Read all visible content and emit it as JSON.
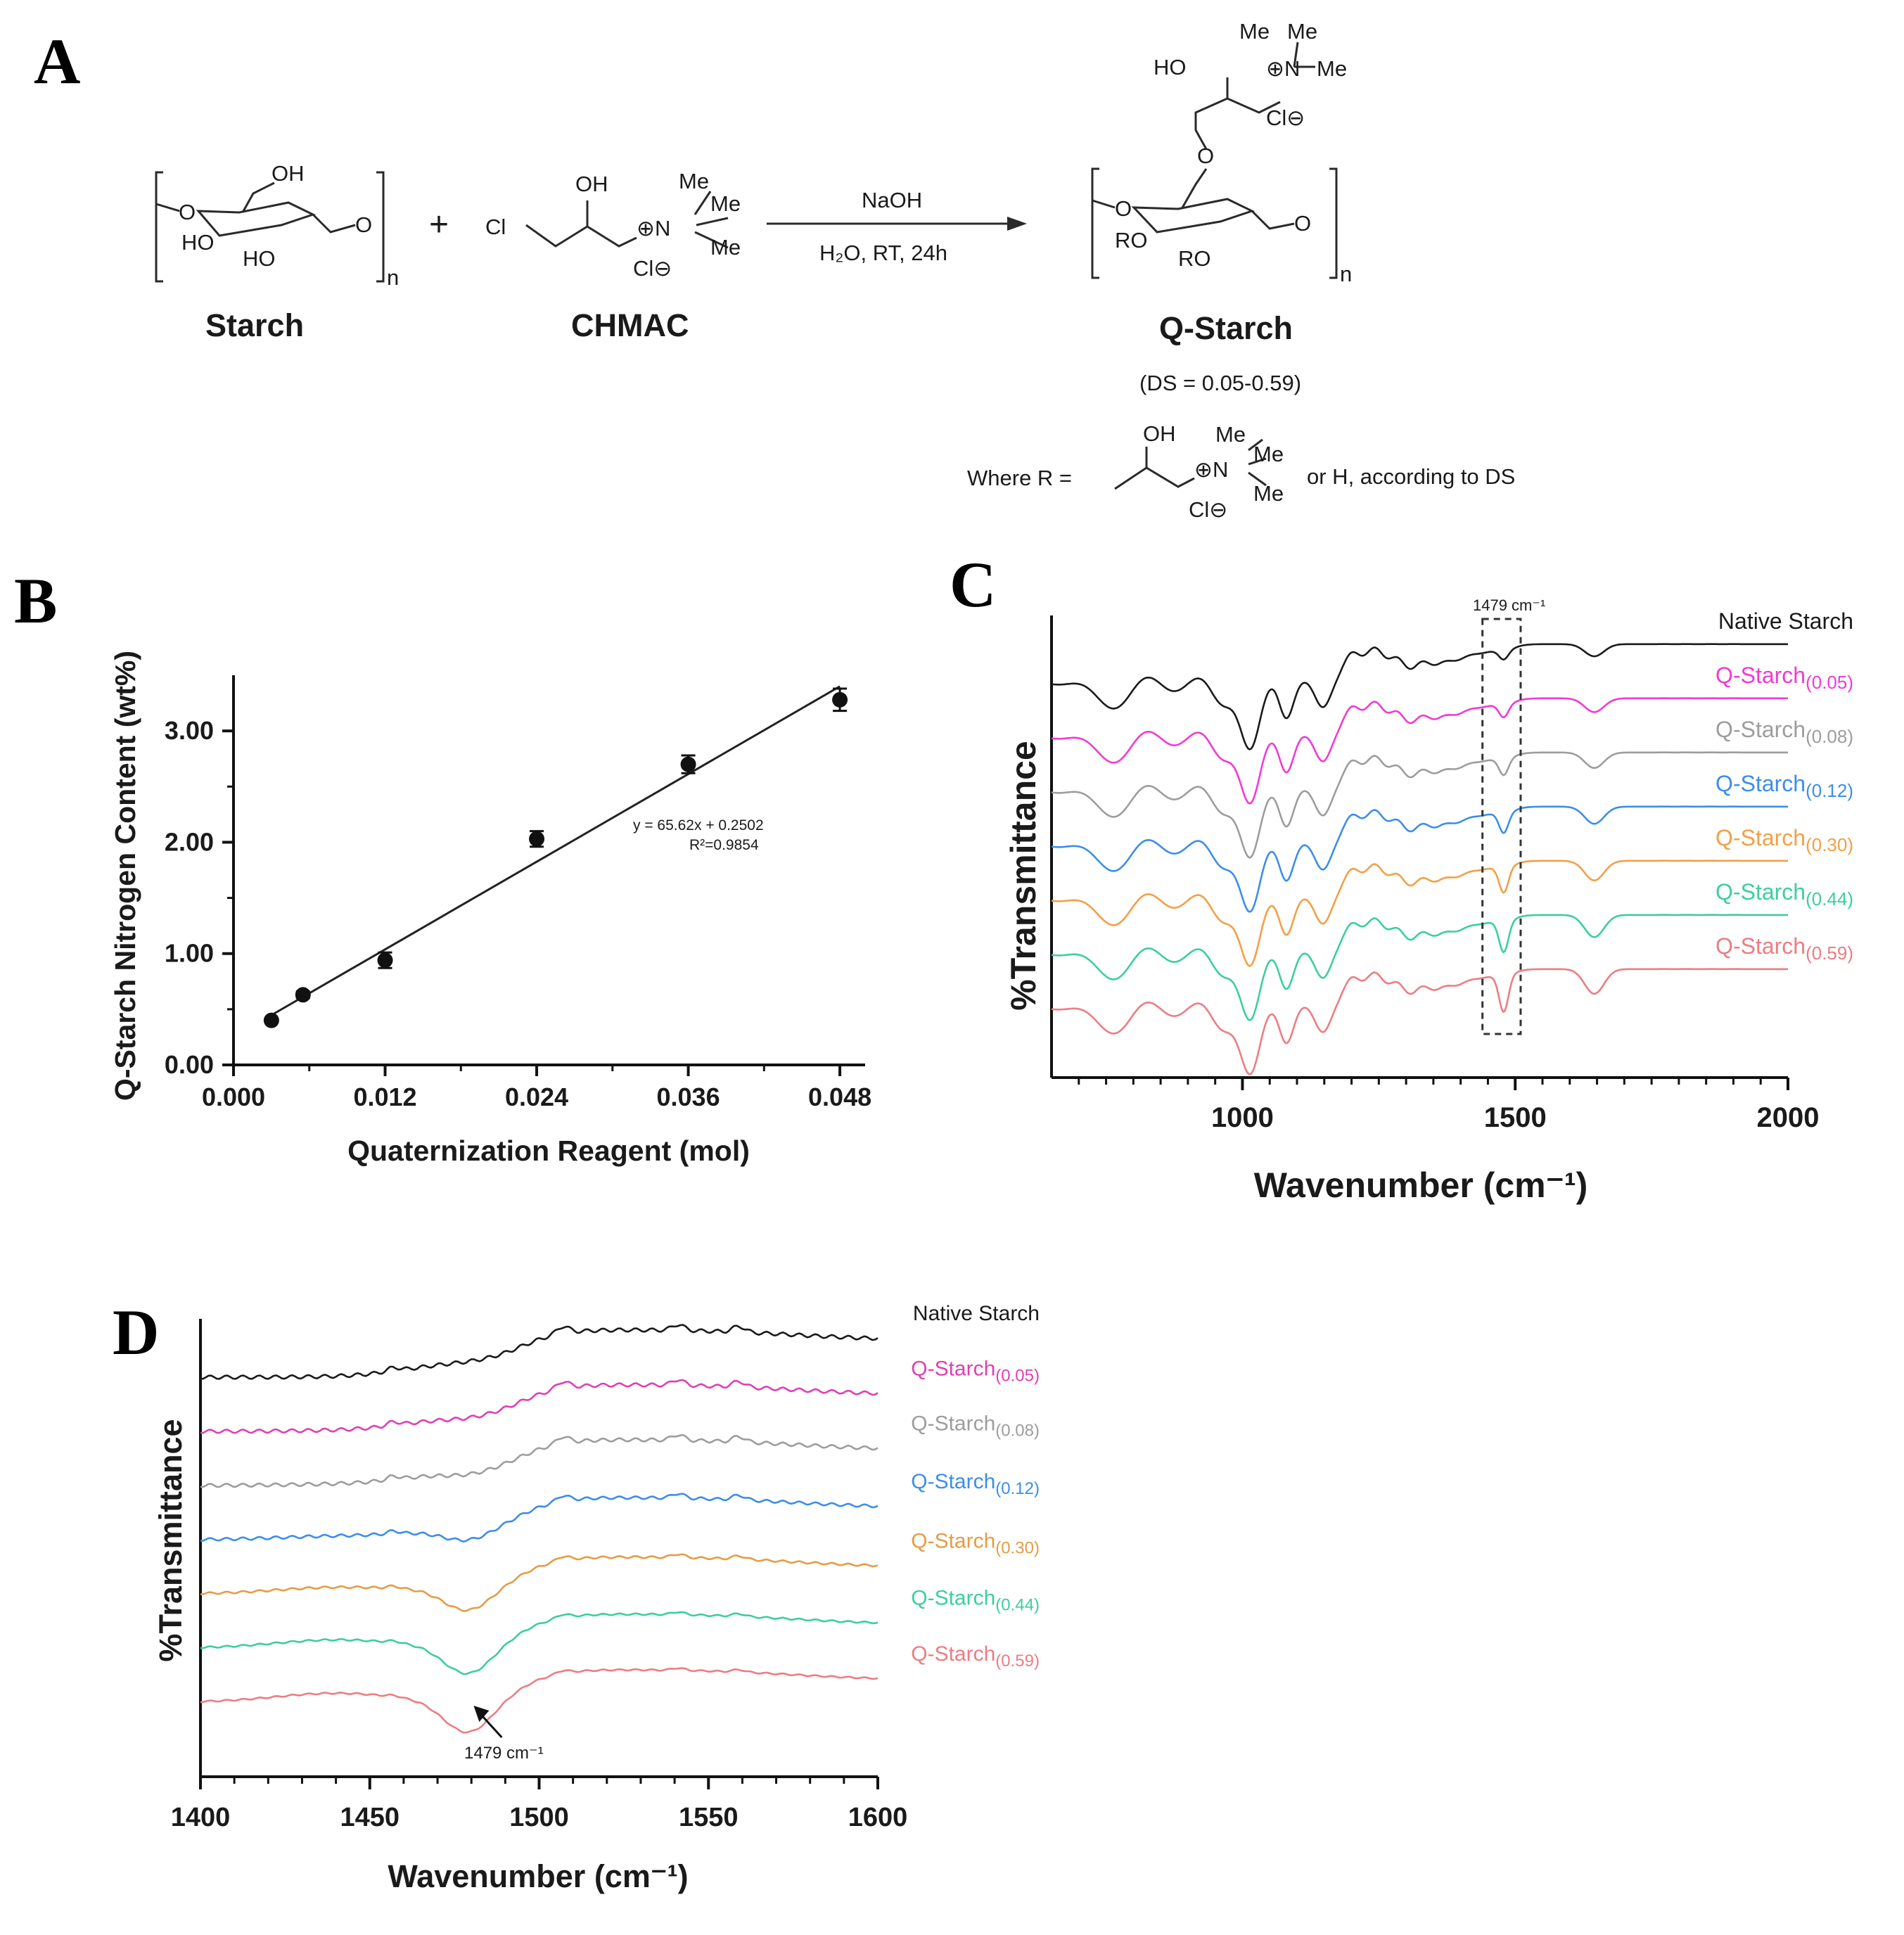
{
  "panels": {
    "a": "A",
    "b": "B",
    "c": "C",
    "d": "D"
  },
  "scheme": {
    "starch_label": "Starch",
    "chmac_label": "CHMAC",
    "product_label": "Q-Starch",
    "reagent": "NaOH",
    "conditions": "H₂O, RT, 24h",
    "plus": "+",
    "ds_range": "(DS = 0.05-0.59)",
    "where_prefix": "Where R =",
    "where_suffix": "or H, according to DS",
    "atoms": {
      "oh": "OH",
      "ho": "HO",
      "o": "O",
      "cl": "Cl",
      "cl_minus": "Cl⊖",
      "me": "Me",
      "n_plus": "⊕N",
      "ro": "RO",
      "n": "n"
    }
  },
  "chart_data": [
    {
      "id": "B",
      "type": "scatter",
      "title": "",
      "xlabel": "Quaternization Reagent (mol)",
      "ylabel": "Q-Starch Nitrogen Content (wt%)",
      "xlim": [
        0.0,
        0.05
      ],
      "ylim": [
        0.0,
        3.5
      ],
      "xticks": [
        "0.000",
        "0.012",
        "0.024",
        "0.036",
        "0.048"
      ],
      "yticks": [
        "0.00",
        "1.00",
        "2.00",
        "3.00"
      ],
      "points": [
        {
          "x": 0.003,
          "y": 0.4,
          "err": 0.02
        },
        {
          "x": 0.0055,
          "y": 0.63,
          "err": 0.03
        },
        {
          "x": 0.012,
          "y": 0.94,
          "err": 0.07
        },
        {
          "x": 0.024,
          "y": 2.03,
          "err": 0.07
        },
        {
          "x": 0.036,
          "y": 2.7,
          "err": 0.08
        },
        {
          "x": 0.048,
          "y": 3.28,
          "err": 0.1
        }
      ],
      "fit": {
        "slope": 65.62,
        "intercept": 0.2502,
        "x_range": [
          0.0025,
          0.048
        ]
      },
      "fit_equation": "y =  65.62x + 0.2502",
      "r2_label": "R²=0.9854"
    },
    {
      "id": "C",
      "type": "line",
      "title": "",
      "xlabel": "Wavenumber (cm⁻¹)",
      "ylabel": "%Transmittance",
      "xlim": [
        650,
        2000
      ],
      "xticks": [
        "1000",
        "1500",
        "2000"
      ],
      "highlight_label": "1479 cm⁻¹",
      "highlight_range": [
        1440,
        1510
      ],
      "series": [
        {
          "name": "Native Starch",
          "color": "#1a1a1a",
          "offset": 6,
          "shift": 0.25
        },
        {
          "name": "Q-Starch(0.05)",
          "color": "#f23ad3",
          "offset": 5,
          "shift": 0.35
        },
        {
          "name": "Q-Starch(0.08)",
          "color": "#9d9d9d",
          "offset": 4,
          "shift": 0.45
        },
        {
          "name": "Q-Starch(0.12)",
          "color": "#3c8ee9",
          "offset": 3,
          "shift": 0.55
        },
        {
          "name": "Q-Starch(0.30)",
          "color": "#f2a047",
          "offset": 2,
          "shift": 0.7
        },
        {
          "name": "Q-Starch(0.44)",
          "color": "#3ccf9c",
          "offset": 1,
          "shift": 0.85
        },
        {
          "name": "Q-Starch(0.59)",
          "color": "#ec7d83",
          "offset": 0,
          "shift": 1.0
        }
      ]
    },
    {
      "id": "D",
      "type": "line",
      "title": "",
      "xlabel": "Wavenumber (cm⁻¹)",
      "ylabel": "%Transmittance",
      "xlim": [
        1400,
        1600
      ],
      "xticks": [
        "1400",
        "1450",
        "1500",
        "1550",
        "1600"
      ],
      "annotation": "1479 cm⁻¹",
      "annotation_x": 1479,
      "series": [
        {
          "name": "Native Starch",
          "color": "#1a1a1a",
          "offset": 6,
          "dip": 0.0
        },
        {
          "name": "Q-Starch(0.05)",
          "color": "#e040b4",
          "offset": 5,
          "dip": 0.05
        },
        {
          "name": "Q-Starch(0.08)",
          "color": "#9d9d9d",
          "offset": 4,
          "dip": 0.1
        },
        {
          "name": "Q-Starch(0.12)",
          "color": "#3c8ee9",
          "offset": 3,
          "dip": 0.35
        },
        {
          "name": "Q-Starch(0.30)",
          "color": "#e69c45",
          "offset": 2,
          "dip": 0.7
        },
        {
          "name": "Q-Starch(0.44)",
          "color": "#3ccf9c",
          "offset": 1,
          "dip": 0.9
        },
        {
          "name": "Q-Starch(0.59)",
          "color": "#ec7d83",
          "offset": 0,
          "dip": 1.0
        }
      ]
    }
  ]
}
